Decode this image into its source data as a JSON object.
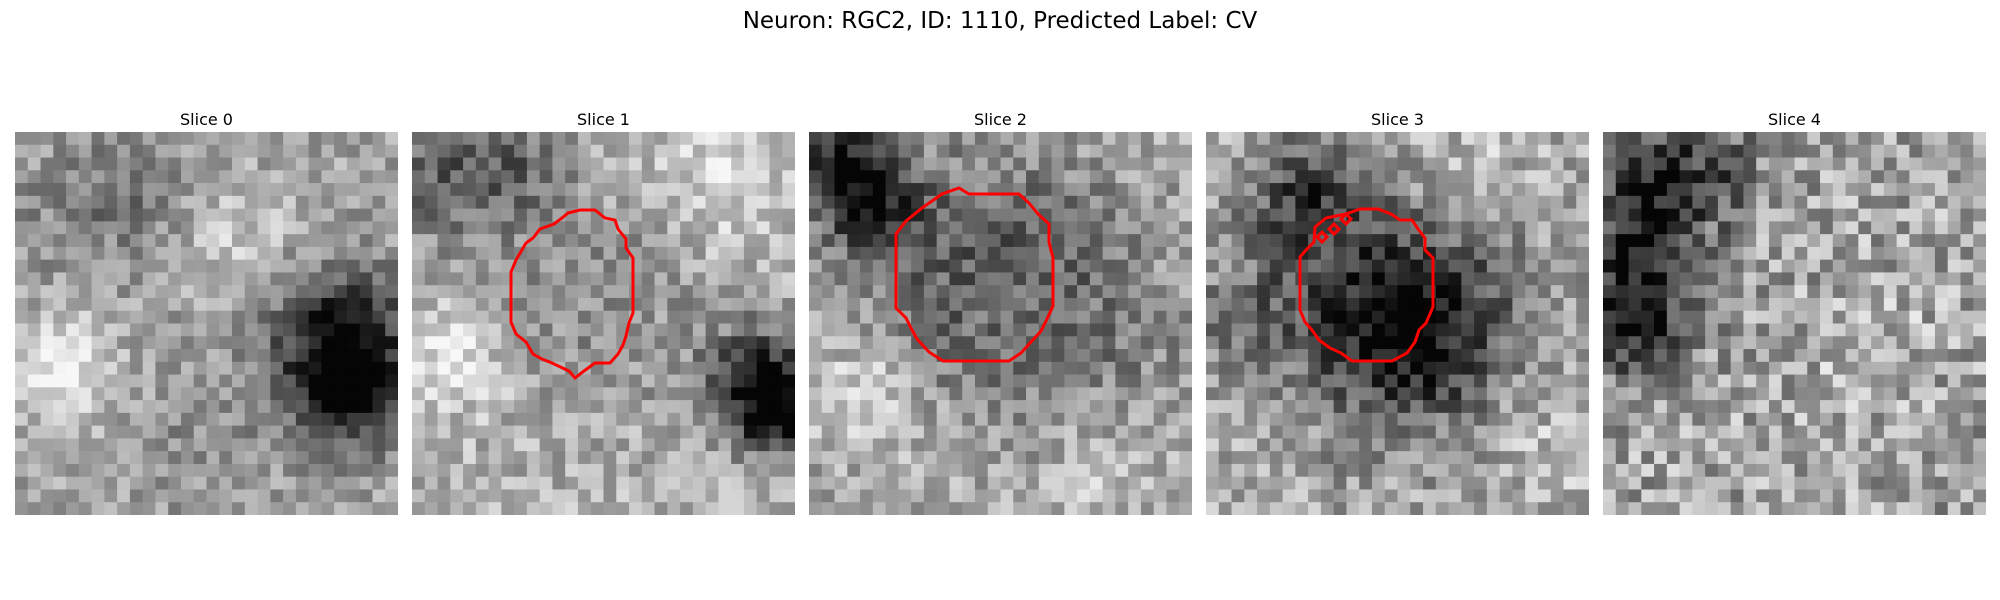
{
  "figure": {
    "title": "Neuron: RGC2, ID: 1110, Predicted Label: CV"
  },
  "colors": {
    "contour": "#ff0000",
    "background": "#ffffff",
    "colormap": "gray"
  },
  "slices": [
    {
      "title": "Slice 0",
      "has_contour": false,
      "seed": 11
    },
    {
      "title": "Slice 1",
      "has_contour": true,
      "seed": 23
    },
    {
      "title": "Slice 2",
      "has_contour": true,
      "seed": 37
    },
    {
      "title": "Slice 3",
      "has_contour": true,
      "seed": 41
    },
    {
      "title": "Slice 4",
      "has_contour": false,
      "seed": 53
    }
  ]
}
